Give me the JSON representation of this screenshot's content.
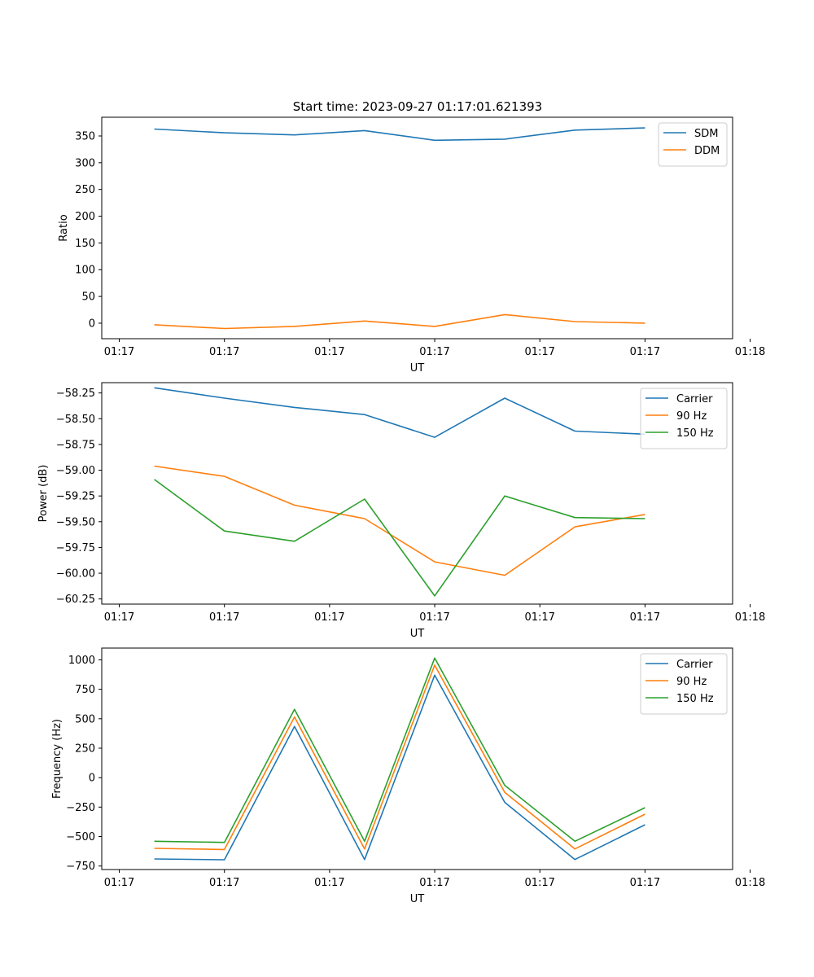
{
  "figure_title": "Start time: 2023-09-27 01:17:01.621393",
  "colors": {
    "blue": "#1f77b4",
    "orange": "#ff7f0e",
    "green": "#2ca02c"
  },
  "chart_data": [
    {
      "type": "line",
      "title": "Start time: 2023-09-27 01:17:01.621393",
      "xlabel": "UT",
      "ylabel": "Ratio",
      "x": [
        1,
        2,
        3,
        4,
        5,
        6,
        7,
        8
      ],
      "xlim": [
        0.25,
        9.25
      ],
      "xticks": [
        0.5,
        2,
        3.5,
        5,
        6.5,
        8,
        9.5
      ],
      "xticklabels": [
        "01:17",
        "01:17",
        "01:17",
        "01:17",
        "01:17",
        "01:17",
        "01:18"
      ],
      "ylim": [
        -29,
        385
      ],
      "yticks": [
        0,
        50,
        100,
        150,
        200,
        250,
        300,
        350
      ],
      "yticklabels": [
        "0",
        "50",
        "100",
        "150",
        "200",
        "250",
        "300",
        "350"
      ],
      "legend": "top-right",
      "series": [
        {
          "name": "SDM",
          "color": "#1f77b4",
          "values": [
            363,
            356,
            352,
            360,
            342,
            344,
            361,
            365
          ]
        },
        {
          "name": "DDM",
          "color": "#ff7f0e",
          "values": [
            -3,
            -10,
            -6,
            4,
            -6,
            16,
            3,
            0
          ]
        }
      ]
    },
    {
      "type": "line",
      "title": "",
      "xlabel": "UT",
      "ylabel": "Power (dB)",
      "x": [
        1,
        2,
        3,
        4,
        5,
        6,
        7,
        8
      ],
      "xlim": [
        0.25,
        9.25
      ],
      "xticks": [
        0.5,
        2,
        3.5,
        5,
        6.5,
        8,
        9.5
      ],
      "xticklabels": [
        "01:17",
        "01:17",
        "01:17",
        "01:17",
        "01:17",
        "01:17",
        "01:18"
      ],
      "ylim": [
        -60.3,
        -58.15
      ],
      "yticks": [
        -60.25,
        -60.0,
        -59.75,
        -59.5,
        -59.25,
        -59.0,
        -58.75,
        -58.5,
        -58.25
      ],
      "yticklabels": [
        "−60.25",
        "−60.00",
        "−59.75",
        "−59.50",
        "−59.25",
        "−59.00",
        "−58.75",
        "−58.50",
        "−58.25"
      ],
      "legend": "top-right",
      "series": [
        {
          "name": "Carrier",
          "color": "#1f77b4",
          "values": [
            -58.2,
            -58.3,
            -58.39,
            -58.46,
            -58.68,
            -58.3,
            -58.62,
            -58.65
          ]
        },
        {
          "name": "90 Hz",
          "color": "#ff7f0e",
          "values": [
            -58.96,
            -59.06,
            -59.34,
            -59.47,
            -59.89,
            -60.02,
            -59.55,
            -59.43
          ]
        },
        {
          "name": "150 Hz",
          "color": "#2ca02c",
          "values": [
            -59.09,
            -59.59,
            -59.69,
            -59.28,
            -60.22,
            -59.25,
            -59.46,
            -59.47
          ]
        }
      ]
    },
    {
      "type": "line",
      "title": "",
      "xlabel": "UT",
      "ylabel": "Frequency (Hz)",
      "x": [
        1,
        2,
        3,
        4,
        5,
        6,
        7,
        8
      ],
      "xlim": [
        0.25,
        9.25
      ],
      "xticks": [
        0.5,
        2,
        3.5,
        5,
        6.5,
        8,
        9.5
      ],
      "xticklabels": [
        "01:17",
        "01:17",
        "01:17",
        "01:17",
        "01:17",
        "01:17",
        "01:18"
      ],
      "ylim": [
        -780,
        1100
      ],
      "yticks": [
        -750,
        -500,
        -250,
        0,
        250,
        500,
        750,
        1000
      ],
      "yticklabels": [
        "−750",
        "−500",
        "−250",
        "0",
        "250",
        "500",
        "750",
        "1000"
      ],
      "legend": "top-right",
      "series": [
        {
          "name": "Carrier",
          "color": "#1f77b4",
          "values": [
            -690,
            -697,
            435,
            -695,
            870,
            -210,
            -695,
            -400
          ]
        },
        {
          "name": "90 Hz",
          "color": "#ff7f0e",
          "values": [
            -600,
            -610,
            515,
            -605,
            955,
            -125,
            -605,
            -310
          ]
        },
        {
          "name": "150 Hz",
          "color": "#2ca02c",
          "values": [
            -540,
            -550,
            580,
            -540,
            1015,
            -65,
            -540,
            -255
          ]
        }
      ]
    }
  ]
}
